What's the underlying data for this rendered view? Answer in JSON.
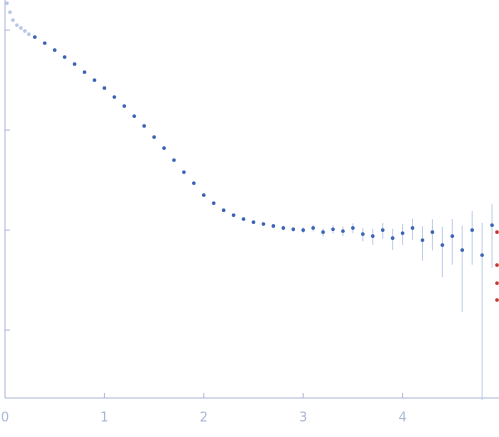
{
  "chart_data": {
    "type": "scatter",
    "ylog": true,
    "error_color": "#bccbe8",
    "axis_color": "#aab6d6",
    "xlim": [
      0,
      4.97
    ],
    "ylim": [
      0.002,
      20
    ],
    "xticks": [
      0,
      1,
      2,
      3,
      4
    ],
    "yticks": [
      0.01,
      0.1,
      1,
      10
    ],
    "series": [
      {
        "color": "#b9c7e6",
        "x": [
          0.02,
          0.05,
          0.08,
          0.12,
          0.16,
          0.2,
          0.24
        ],
        "values": [
          18.6,
          15.1,
          12.6,
          11.2,
          10.5,
          9.8,
          9.1
        ]
      },
      {
        "color": "#3a63b5",
        "x": [
          0.3,
          0.4,
          0.5,
          0.6,
          0.7,
          0.8,
          0.9,
          1.0,
          1.1,
          1.2,
          1.3,
          1.4,
          1.5,
          1.6,
          1.7,
          1.8,
          1.9,
          2.0,
          2.1,
          2.2,
          2.3,
          2.4,
          2.5,
          2.6,
          2.7,
          2.8,
          2.9,
          3.0,
          3.1,
          3.2,
          3.3,
          3.4,
          3.5,
          3.6,
          3.7,
          3.8,
          3.9,
          4.0,
          4.1,
          4.2,
          4.3,
          4.4,
          4.5,
          4.6,
          4.7,
          4.8,
          4.9
        ],
        "values": [
          8.51,
          7.41,
          6.31,
          5.37,
          4.57,
          3.8,
          3.16,
          2.63,
          2.14,
          1.74,
          1.38,
          1.1,
          0.851,
          0.661,
          0.501,
          0.38,
          0.295,
          0.224,
          0.186,
          0.158,
          0.141,
          0.129,
          0.12,
          0.115,
          0.11,
          0.105,
          0.102,
          0.1,
          0.105,
          0.0955,
          0.102,
          0.0977,
          0.105,
          0.0912,
          0.0871,
          0.1,
          0.0832,
          0.0933,
          0.105,
          0.0794,
          0.0955,
          0.0708,
          0.0871,
          0.0631,
          0.1,
          0.0562,
          0.112
        ],
        "errors": [
          0.05,
          0.04,
          0.03,
          0.03,
          0.02,
          0.02,
          0.02,
          0.01,
          0.01,
          0.01,
          0.01,
          0.01,
          0.008,
          0.006,
          0.005,
          0.004,
          0.004,
          0.003,
          0.003,
          0.003,
          0.003,
          0.004,
          0.004,
          0.005,
          0.005,
          0.006,
          0.006,
          0.007,
          0.008,
          0.009,
          0.01,
          0.011,
          0.012,
          0.014,
          0.016,
          0.018,
          0.02,
          0.022,
          0.025,
          0.03,
          0.033,
          0.037,
          0.042,
          0.048,
          0.055,
          0.062,
          0.07
        ]
      },
      {
        "color": "#c0392b",
        "x": [
          4.95,
          4.95,
          4.95,
          4.95
        ],
        "values": [
          0.0955,
          0.0447,
          0.0295,
          0.02
        ]
      }
    ]
  }
}
